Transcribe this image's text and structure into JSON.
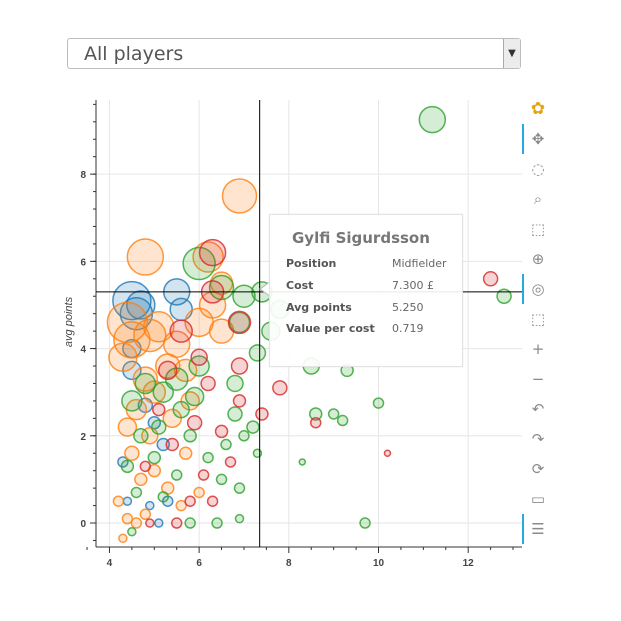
{
  "filter": {
    "selected": "All players"
  },
  "tooltip": {
    "name": "Gylfi Sigurdsson",
    "rows": [
      {
        "key": "Position",
        "value": "Midfielder"
      },
      {
        "key": "Cost",
        "value": "7.300 £"
      },
      {
        "key": "Avg points",
        "value": "5.250"
      },
      {
        "key": "Value per cost",
        "value": "0.719"
      }
    ]
  },
  "toolbar": {
    "tools": [
      {
        "name": "bokeh-logo-icon",
        "glyph": "✿",
        "active": false
      },
      {
        "name": "pan-icon",
        "glyph": "✥",
        "active": true
      },
      {
        "name": "lasso-select-icon",
        "glyph": "◌",
        "active": false
      },
      {
        "name": "box-zoom-icon",
        "glyph": "⌕",
        "active": false
      },
      {
        "name": "box-select-icon",
        "glyph": "⬚",
        "active": false
      },
      {
        "name": "resize-icon",
        "glyph": "⊕",
        "active": false
      },
      {
        "name": "wheel-zoom-icon",
        "glyph": "◎",
        "active": true
      },
      {
        "name": "tap-select-icon",
        "glyph": "⬚",
        "active": false
      },
      {
        "name": "zoom-in-icon",
        "glyph": "+",
        "active": false
      },
      {
        "name": "zoom-out-icon",
        "glyph": "−",
        "active": false
      },
      {
        "name": "undo-icon",
        "glyph": "↶",
        "active": false
      },
      {
        "name": "redo-icon",
        "glyph": "↷",
        "active": false
      },
      {
        "name": "reset-icon",
        "glyph": "⟳",
        "active": false
      },
      {
        "name": "save-icon",
        "glyph": "▭",
        "active": false
      },
      {
        "name": "hover-icon",
        "glyph": "☰",
        "active": true
      }
    ]
  },
  "chart_data": {
    "type": "scatter",
    "title": "",
    "xlabel": "",
    "ylabel": "avg points",
    "xlim": [
      3.7,
      13.2
    ],
    "ylim": [
      -0.55,
      9.7
    ],
    "xticks": [
      4,
      6,
      8,
      10,
      12
    ],
    "yticks": [
      0,
      2,
      4,
      6,
      8
    ],
    "grid": true,
    "crosshair": {
      "x": 7.35,
      "y": 5.3
    },
    "colors": {
      "blue": "#1f77b4",
      "orange": "#ff7f0e",
      "green": "#2ca02c",
      "red": "#d62728"
    },
    "series": [
      {
        "color": "blue",
        "points": [
          [
            4.5,
            5.1,
            19
          ],
          [
            4.6,
            4.8,
            16
          ],
          [
            4.7,
            5.0,
            14
          ],
          [
            4.5,
            4.0,
            9
          ],
          [
            4.5,
            3.5,
            9
          ],
          [
            5.5,
            5.3,
            13
          ],
          [
            5.6,
            4.9,
            11
          ],
          [
            4.8,
            2.7,
            7
          ],
          [
            5.0,
            2.3,
            6
          ],
          [
            4.4,
            0.5,
            4
          ],
          [
            4.9,
            0.4,
            4
          ],
          [
            5.2,
            1.8,
            6
          ],
          [
            5.1,
            0.0,
            4
          ],
          [
            4.3,
            1.4,
            5
          ],
          [
            5.3,
            0.5,
            5
          ]
        ]
      },
      {
        "color": "orange",
        "points": [
          [
            6.9,
            7.5,
            17
          ],
          [
            4.8,
            6.1,
            18
          ],
          [
            6.2,
            6.1,
            15
          ],
          [
            4.4,
            4.6,
            20
          ],
          [
            4.5,
            4.2,
            18
          ],
          [
            4.9,
            4.3,
            16
          ],
          [
            4.3,
            3.8,
            14
          ],
          [
            5.1,
            4.5,
            15
          ],
          [
            5.5,
            4.1,
            13
          ],
          [
            5.3,
            3.6,
            12
          ],
          [
            4.8,
            3.3,
            12
          ],
          [
            5.0,
            3.0,
            11
          ],
          [
            4.6,
            2.6,
            10
          ],
          [
            5.7,
            3.5,
            11
          ],
          [
            6.0,
            4.6,
            14
          ],
          [
            6.5,
            4.4,
            12
          ],
          [
            4.4,
            2.2,
            9
          ],
          [
            4.9,
            2.0,
            8
          ],
          [
            5.4,
            2.4,
            9
          ],
          [
            5.8,
            2.8,
            9
          ],
          [
            4.5,
            1.6,
            7
          ],
          [
            5.0,
            1.2,
            6
          ],
          [
            5.3,
            0.8,
            6
          ],
          [
            4.2,
            0.5,
            5
          ],
          [
            4.4,
            0.1,
            5
          ],
          [
            4.6,
            0.0,
            5
          ],
          [
            4.8,
            0.2,
            5
          ],
          [
            5.6,
            0.4,
            5
          ],
          [
            6.0,
            0.7,
            5
          ],
          [
            4.3,
            -0.35,
            4
          ],
          [
            5.7,
            1.6,
            6
          ],
          [
            6.3,
            5.0,
            13
          ],
          [
            6.5,
            5.5,
            11
          ],
          [
            4.7,
            1.0,
            6
          ]
        ]
      },
      {
        "color": "green",
        "points": [
          [
            11.2,
            9.25,
            13
          ],
          [
            6.0,
            5.95,
            16
          ],
          [
            6.5,
            5.4,
            12
          ],
          [
            7.0,
            5.2,
            11
          ],
          [
            7.4,
            5.3,
            10
          ],
          [
            6.9,
            4.6,
            10
          ],
          [
            7.8,
            4.9,
            9
          ],
          [
            7.6,
            4.4,
            9
          ],
          [
            7.3,
            3.9,
            8
          ],
          [
            8.5,
            3.6,
            8
          ],
          [
            9.3,
            3.5,
            6
          ],
          [
            6.8,
            3.2,
            8
          ],
          [
            6.0,
            3.6,
            10
          ],
          [
            5.5,
            3.3,
            11
          ],
          [
            5.2,
            3.0,
            10
          ],
          [
            4.8,
            3.2,
            10
          ],
          [
            4.5,
            2.8,
            10
          ],
          [
            5.9,
            2.9,
            9
          ],
          [
            6.8,
            2.5,
            7
          ],
          [
            7.2,
            2.2,
            6
          ],
          [
            8.6,
            2.5,
            6
          ],
          [
            9.0,
            2.5,
            5
          ],
          [
            10.0,
            2.75,
            5
          ],
          [
            9.2,
            2.35,
            5
          ],
          [
            7.0,
            2.0,
            5
          ],
          [
            6.6,
            1.8,
            5
          ],
          [
            5.6,
            2.6,
            8
          ],
          [
            5.1,
            2.2,
            7
          ],
          [
            4.7,
            2.0,
            7
          ],
          [
            4.4,
            1.3,
            6
          ],
          [
            5.0,
            1.5,
            6
          ],
          [
            5.8,
            2.0,
            6
          ],
          [
            6.2,
            1.5,
            5
          ],
          [
            6.5,
            1.0,
            5
          ],
          [
            6.9,
            0.8,
            5
          ],
          [
            7.3,
            1.6,
            4
          ],
          [
            8.3,
            1.4,
            3
          ],
          [
            4.6,
            0.7,
            5
          ],
          [
            5.2,
            0.6,
            5
          ],
          [
            5.8,
            0.0,
            5
          ],
          [
            6.4,
            0.0,
            5
          ],
          [
            6.9,
            0.1,
            4
          ],
          [
            9.7,
            0.0,
            5
          ],
          [
            4.5,
            -0.2,
            4
          ],
          [
            5.5,
            1.1,
            5
          ],
          [
            12.8,
            5.2,
            7
          ]
        ]
      },
      {
        "color": "red",
        "points": [
          [
            6.3,
            6.2,
            13
          ],
          [
            6.3,
            5.3,
            11
          ],
          [
            6.9,
            4.6,
            11
          ],
          [
            5.6,
            4.4,
            11
          ],
          [
            5.3,
            3.5,
            9
          ],
          [
            6.0,
            3.8,
            8
          ],
          [
            6.9,
            3.6,
            8
          ],
          [
            6.2,
            3.2,
            7
          ],
          [
            5.9,
            2.3,
            7
          ],
          [
            6.5,
            2.1,
            6
          ],
          [
            7.8,
            3.1,
            7
          ],
          [
            8.6,
            2.3,
            5
          ],
          [
            6.9,
            2.8,
            6
          ],
          [
            7.4,
            2.5,
            6
          ],
          [
            10.2,
            1.6,
            3
          ],
          [
            12.5,
            5.6,
            7
          ],
          [
            5.4,
            1.8,
            6
          ],
          [
            5.1,
            2.6,
            6
          ],
          [
            6.7,
            1.4,
            5
          ],
          [
            6.3,
            0.5,
            5
          ],
          [
            5.5,
            0.0,
            5
          ],
          [
            4.9,
            0.0,
            4
          ],
          [
            6.1,
            1.1,
            5
          ],
          [
            5.8,
            0.5,
            5
          ],
          [
            4.8,
            1.3,
            5
          ]
        ]
      }
    ]
  }
}
